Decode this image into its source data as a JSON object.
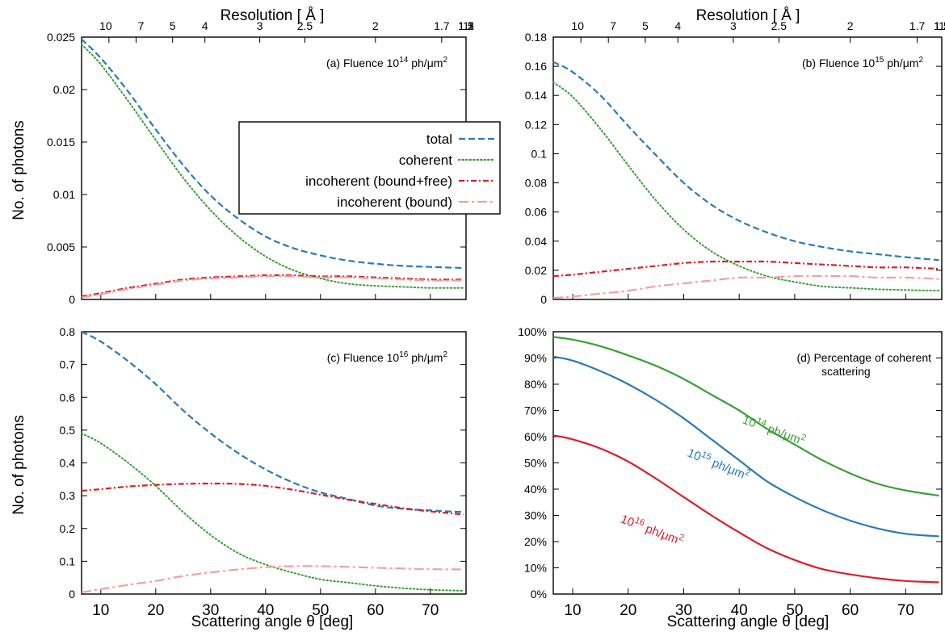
{
  "figure": {
    "resolution_label": "Resolution [ Å ]",
    "resolution_ticks": [
      "10",
      "7",
      "5",
      "4",
      "3",
      "2.5",
      "2",
      "1.7",
      "1.5",
      "1.3",
      "1.2",
      "1.1",
      "1"
    ],
    "x_label": "Scattering angle θ [deg]",
    "y_label": "No. of photons",
    "colors": {
      "total": "#2a7ab8",
      "coherent": "#3a9e35",
      "incoherent_bound_free": "#d7202a",
      "incoherent_bound": "#f0a0a0"
    }
  },
  "legend": [
    {
      "key": "total",
      "label": "total",
      "dash": "dashed"
    },
    {
      "key": "coherent",
      "label": "coherent",
      "dash": "dotted"
    },
    {
      "key": "incoherent_bound_free",
      "label": "incoherent (bound+free)",
      "dash": "dash-dot"
    },
    {
      "key": "incoherent_bound",
      "label": "incoherent (bound)",
      "dash": "long-dash-dot"
    }
  ],
  "chart_data": [
    {
      "id": "a",
      "type": "line",
      "annotation": {
        "prefix": "(a) Fluence 10",
        "sup": "14",
        "suffix": " ph/μm",
        "sup2": "2"
      },
      "xlim": [
        6.5,
        76.5
      ],
      "ylim": [
        0,
        0.025
      ],
      "yticks": [
        0,
        0.005,
        0.01,
        0.015,
        0.02,
        0.025
      ],
      "ytick_labels": [
        "0",
        "0.005",
        "0.01",
        "0.015",
        "0.02",
        "0.025"
      ],
      "xticks": [
        10,
        20,
        30,
        40,
        50,
        60,
        70
      ],
      "xtick_labels": [],
      "x": [
        6.5,
        10,
        15,
        20,
        25,
        30,
        35,
        40,
        45,
        50,
        55,
        60,
        65,
        70,
        76
      ],
      "series": [
        {
          "key": "total",
          "values": [
            0.0248,
            0.023,
            0.0198,
            0.0162,
            0.0128,
            0.0099,
            0.0077,
            0.006,
            0.0049,
            0.0042,
            0.0037,
            0.0034,
            0.0032,
            0.0031,
            0.003
          ]
        },
        {
          "key": "coherent",
          "values": [
            0.0243,
            0.0224,
            0.0189,
            0.0152,
            0.0116,
            0.0085,
            0.006,
            0.0041,
            0.0028,
            0.002,
            0.0015,
            0.0013,
            0.0012,
            0.0011,
            0.0011
          ]
        },
        {
          "key": "incoherent_bound_free",
          "values": [
            0.0003,
            0.0006,
            0.0011,
            0.0015,
            0.0019,
            0.0021,
            0.0022,
            0.0023,
            0.0023,
            0.0022,
            0.0022,
            0.0021,
            0.002,
            0.0019,
            0.0019
          ]
        },
        {
          "key": "incoherent_bound",
          "values": [
            0.0002,
            0.0005,
            0.001,
            0.0014,
            0.0018,
            0.002,
            0.0021,
            0.0022,
            0.0022,
            0.0021,
            0.0021,
            0.002,
            0.0019,
            0.0018,
            0.0018
          ]
        }
      ]
    },
    {
      "id": "b",
      "type": "line",
      "annotation": {
        "prefix": "(b) Fluence 10",
        "sup": "15",
        "suffix": " ph/μm",
        "sup2": "2"
      },
      "xlim": [
        6.5,
        76.5
      ],
      "ylim": [
        0,
        0.18
      ],
      "yticks": [
        0,
        0.02,
        0.04,
        0.06,
        0.08,
        0.1,
        0.12,
        0.14,
        0.16,
        0.18
      ],
      "ytick_labels": [
        "0",
        "0.02",
        "0.04",
        "0.06",
        "0.08",
        "0.1",
        "0.12",
        "0.14",
        "0.16",
        "0.18"
      ],
      "xticks": [
        10,
        20,
        30,
        40,
        50,
        60,
        70
      ],
      "xtick_labels": [],
      "x": [
        6.5,
        10,
        15,
        20,
        25,
        30,
        35,
        40,
        45,
        50,
        55,
        60,
        65,
        70,
        76
      ],
      "series": [
        {
          "key": "total",
          "values": [
            0.163,
            0.156,
            0.14,
            0.119,
            0.099,
            0.08,
            0.065,
            0.054,
            0.046,
            0.04,
            0.036,
            0.033,
            0.031,
            0.029,
            0.027
          ]
        },
        {
          "key": "coherent",
          "values": [
            0.149,
            0.139,
            0.117,
            0.092,
            0.068,
            0.048,
            0.033,
            0.023,
            0.016,
            0.012,
            0.009,
            0.008,
            0.007,
            0.0065,
            0.006
          ]
        },
        {
          "key": "incoherent_bound_free",
          "values": [
            0.016,
            0.017,
            0.019,
            0.021,
            0.023,
            0.025,
            0.026,
            0.026,
            0.026,
            0.025,
            0.024,
            0.023,
            0.022,
            0.022,
            0.021
          ]
        },
        {
          "key": "incoherent_bound",
          "values": [
            0.001,
            0.002,
            0.004,
            0.006,
            0.009,
            0.011,
            0.013,
            0.015,
            0.015,
            0.016,
            0.016,
            0.016,
            0.015,
            0.015,
            0.014
          ]
        }
      ]
    },
    {
      "id": "c",
      "type": "line",
      "annotation": {
        "prefix": "(c) Fluence 10",
        "sup": "16",
        "suffix": " ph/μm",
        "sup2": "2"
      },
      "xlim": [
        6.5,
        76.5
      ],
      "ylim": [
        0,
        0.8
      ],
      "yticks": [
        0,
        0.1,
        0.2,
        0.3,
        0.4,
        0.5,
        0.6,
        0.7,
        0.8
      ],
      "ytick_labels": [
        "0",
        "0.1",
        "0.2",
        "0.3",
        "0.4",
        "0.5",
        "0.6",
        "0.7",
        "0.8"
      ],
      "xticks": [
        10,
        20,
        30,
        40,
        50,
        60,
        70
      ],
      "xtick_labels": [
        "10",
        "20",
        "30",
        "40",
        "50",
        "60",
        "70"
      ],
      "x": [
        6.5,
        10,
        15,
        20,
        25,
        30,
        35,
        40,
        45,
        50,
        55,
        60,
        65,
        70,
        76
      ],
      "series": [
        {
          "key": "total",
          "values": [
            0.8,
            0.77,
            0.71,
            0.64,
            0.56,
            0.49,
            0.43,
            0.38,
            0.34,
            0.31,
            0.29,
            0.27,
            0.26,
            0.255,
            0.25
          ]
        },
        {
          "key": "coherent",
          "values": [
            0.49,
            0.46,
            0.4,
            0.33,
            0.25,
            0.18,
            0.125,
            0.09,
            0.065,
            0.045,
            0.035,
            0.025,
            0.018,
            0.013,
            0.01
          ]
        },
        {
          "key": "incoherent_bound_free",
          "values": [
            0.315,
            0.32,
            0.328,
            0.333,
            0.336,
            0.337,
            0.336,
            0.33,
            0.318,
            0.303,
            0.288,
            0.275,
            0.262,
            0.252,
            0.243
          ]
        },
        {
          "key": "incoherent_bound",
          "values": [
            0.005,
            0.015,
            0.028,
            0.04,
            0.055,
            0.066,
            0.075,
            0.082,
            0.085,
            0.085,
            0.083,
            0.08,
            0.078,
            0.076,
            0.075
          ]
        }
      ]
    },
    {
      "id": "d",
      "type": "line",
      "annotation": {
        "prefix": "(d) Percentage of coherent",
        "line2": "scattering"
      },
      "xlim": [
        6.5,
        76.5
      ],
      "ylim": [
        0,
        100
      ],
      "yticks": [
        0,
        10,
        20,
        30,
        40,
        50,
        60,
        70,
        80,
        90,
        100
      ],
      "ytick_labels": [
        "0%",
        "10%",
        "20%",
        "30%",
        "40%",
        "50%",
        "60%",
        "70%",
        "80%",
        "90%",
        "100%"
      ],
      "xticks": [
        10,
        20,
        30,
        40,
        50,
        60,
        70
      ],
      "xtick_labels": [
        "10",
        "20",
        "30",
        "40",
        "50",
        "60",
        "70"
      ],
      "x": [
        6.5,
        10,
        15,
        20,
        25,
        30,
        35,
        40,
        45,
        50,
        55,
        60,
        65,
        70,
        76
      ],
      "series": [
        {
          "key": "f14",
          "name": "10",
          "sup": "14",
          "unit": " ph/μm",
          "sup2": "2",
          "color": "#3a9e35",
          "values": [
            98,
            97,
            94.5,
            91,
            87,
            82,
            76,
            70,
            63,
            57,
            51,
            46,
            42,
            39.5,
            37.5
          ]
        },
        {
          "key": "f15",
          "name": "10",
          "sup": "15",
          "unit": " ph/μm",
          "sup2": "2",
          "color": "#2a7ab8",
          "values": [
            90.5,
            89,
            85,
            80,
            74,
            67,
            59,
            51,
            43,
            37,
            32,
            28,
            25,
            23,
            22
          ]
        },
        {
          "key": "f16",
          "name": "10",
          "sup": "16",
          "unit": " ph/μm",
          "sup2": "2",
          "color": "#d7202a",
          "values": [
            60.5,
            59,
            55.5,
            50.5,
            44,
            37,
            30,
            23.5,
            17.5,
            13,
            9.5,
            7.5,
            6,
            5,
            4.5
          ]
        }
      ]
    }
  ]
}
